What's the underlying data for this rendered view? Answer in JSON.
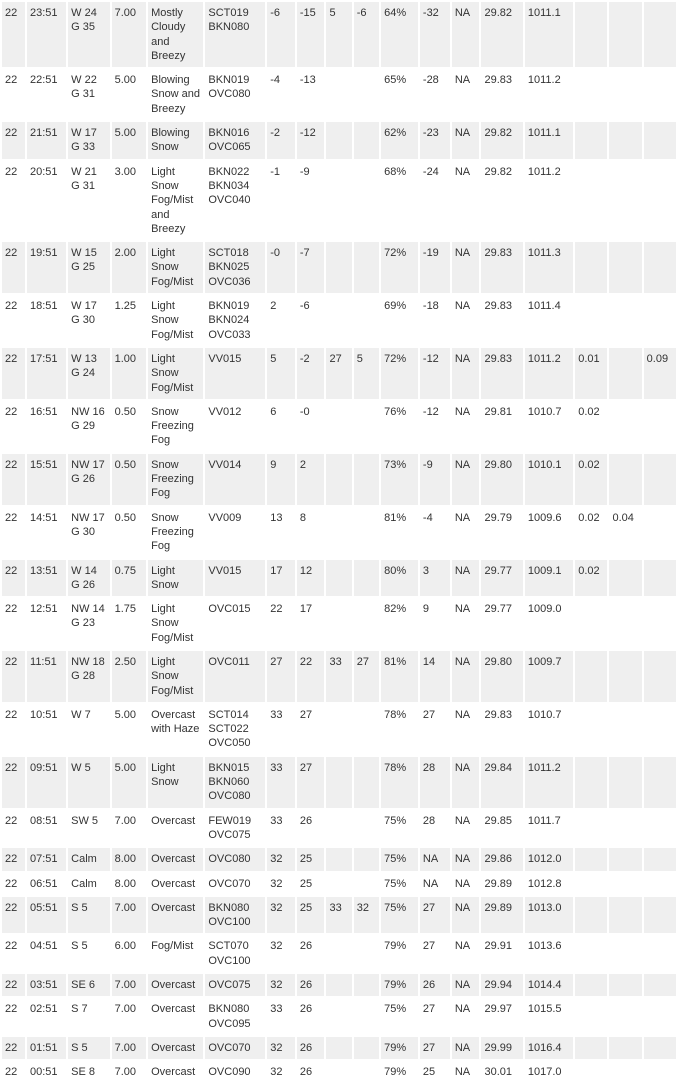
{
  "columns": 18,
  "rows": [
    {
      "shade": "even",
      "cells": [
        "22",
        "23:51",
        "W 24 G 35",
        "7.00",
        "Mostly Cloudy and Breezy",
        "SCT019 BKN080",
        "-6",
        "-15",
        "5",
        "-6",
        "64%",
        "-32",
        "NA",
        "29.82",
        "1011.1",
        "",
        "",
        ""
      ]
    },
    {
      "shade": "odd",
      "cells": [
        "22",
        "22:51",
        "W 22 G 31",
        "5.00",
        "Blowing Snow and Breezy",
        "BKN019 OVC080",
        "-4",
        "-13",
        "",
        "",
        "65%",
        "-28",
        "NA",
        "29.83",
        "1011.2",
        "",
        "",
        ""
      ]
    },
    {
      "shade": "even",
      "cells": [
        "22",
        "21:51",
        "W 17 G 33",
        "5.00",
        "Blowing Snow",
        "BKN016 OVC065",
        "-2",
        "-12",
        "",
        "",
        "62%",
        "-23",
        "NA",
        "29.82",
        "1011.1",
        "",
        "",
        ""
      ]
    },
    {
      "shade": "odd",
      "cells": [
        "22",
        "20:51",
        "W 21 G 31",
        "3.00",
        "Light Snow Fog/Mist and Breezy",
        "BKN022 BKN034 OVC040",
        "-1",
        "-9",
        "",
        "",
        "68%",
        "-24",
        "NA",
        "29.82",
        "1011.2",
        "",
        "",
        ""
      ]
    },
    {
      "shade": "even",
      "cells": [
        "22",
        "19:51",
        "W 15 G 25",
        "2.00",
        "Light Snow Fog/Mist",
        "SCT018 BKN025 OVC036",
        "-0",
        "-7",
        "",
        "",
        "72%",
        "-19",
        "NA",
        "29.83",
        "1011.3",
        "",
        "",
        ""
      ]
    },
    {
      "shade": "odd",
      "cells": [
        "22",
        "18:51",
        "W 17 G 30",
        "1.25",
        "Light Snow Fog/Mist",
        "BKN019 BKN024 OVC033",
        "2",
        "-6",
        "",
        "",
        "69%",
        "-18",
        "NA",
        "29.83",
        "1011.4",
        "",
        "",
        ""
      ]
    },
    {
      "shade": "even",
      "cells": [
        "22",
        "17:51",
        "W 13 G 24",
        "1.00",
        "Light Snow Fog/Mist",
        "VV015",
        "5",
        "-2",
        "27",
        "5",
        "72%",
        "-12",
        "NA",
        "29.83",
        "1011.2",
        "0.01",
        "",
        "0.09"
      ]
    },
    {
      "shade": "odd",
      "cells": [
        "22",
        "16:51",
        "NW 16 G 29",
        "0.50",
        "Snow Freezing Fog",
        "VV012",
        "6",
        "-0",
        "",
        "",
        "76%",
        "-12",
        "NA",
        "29.81",
        "1010.7",
        "0.02",
        "",
        ""
      ]
    },
    {
      "shade": "even",
      "cells": [
        "22",
        "15:51",
        "NW 17 G 26",
        "0.50",
        "Snow Freezing Fog",
        "VV014",
        "9",
        "2",
        "",
        "",
        "73%",
        "-9",
        "NA",
        "29.80",
        "1010.1",
        "0.02",
        "",
        ""
      ]
    },
    {
      "shade": "odd",
      "cells": [
        "22",
        "14:51",
        "NW 17 G 30",
        "0.50",
        "Snow Freezing Fog",
        "VV009",
        "13",
        "8",
        "",
        "",
        "81%",
        "-4",
        "NA",
        "29.79",
        "1009.6",
        "0.02",
        "0.04",
        ""
      ]
    },
    {
      "shade": "even",
      "cells": [
        "22",
        "13:51",
        "W 14 G 26",
        "0.75",
        "Light Snow",
        "VV015",
        "17",
        "12",
        "",
        "",
        "80%",
        "3",
        "NA",
        "29.77",
        "1009.1",
        "0.02",
        "",
        ""
      ]
    },
    {
      "shade": "odd",
      "cells": [
        "22",
        "12:51",
        "NW 14 G 23",
        "1.75",
        "Light Snow Fog/Mist",
        "OVC015",
        "22",
        "17",
        "",
        "",
        "82%",
        "9",
        "NA",
        "29.77",
        "1009.0",
        "",
        "",
        ""
      ]
    },
    {
      "shade": "even",
      "cells": [
        "22",
        "11:51",
        "NW 18 G 28",
        "2.50",
        "Light Snow Fog/Mist",
        "OVC011",
        "27",
        "22",
        "33",
        "27",
        "81%",
        "14",
        "NA",
        "29.80",
        "1009.7",
        "",
        "",
        ""
      ]
    },
    {
      "shade": "odd",
      "cells": [
        "22",
        "10:51",
        "W 7",
        "5.00",
        "Overcast with Haze",
        "SCT014 SCT022 OVC050",
        "33",
        "27",
        "",
        "",
        "78%",
        "27",
        "NA",
        "29.83",
        "1010.7",
        "",
        "",
        ""
      ]
    },
    {
      "shade": "even",
      "cells": [
        "22",
        "09:51",
        "W 5",
        "5.00",
        "Light Snow",
        "BKN015 BKN060 OVC080",
        "33",
        "27",
        "",
        "",
        "78%",
        "28",
        "NA",
        "29.84",
        "1011.2",
        "",
        "",
        ""
      ]
    },
    {
      "shade": "odd",
      "cells": [
        "22",
        "08:51",
        "SW 5",
        "7.00",
        "Overcast",
        "FEW019 OVC075",
        "33",
        "26",
        "",
        "",
        "75%",
        "28",
        "NA",
        "29.85",
        "1011.7",
        "",
        "",
        ""
      ]
    },
    {
      "shade": "even",
      "cells": [
        "22",
        "07:51",
        "Calm",
        "8.00",
        "Overcast",
        "OVC080",
        "32",
        "25",
        "",
        "",
        "75%",
        "NA",
        "NA",
        "29.86",
        "1012.0",
        "",
        "",
        ""
      ]
    },
    {
      "shade": "odd",
      "cells": [
        "22",
        "06:51",
        "Calm",
        "8.00",
        "Overcast",
        "OVC070",
        "32",
        "25",
        "",
        "",
        "75%",
        "NA",
        "NA",
        "29.89",
        "1012.8",
        "",
        "",
        ""
      ]
    },
    {
      "shade": "even",
      "cells": [
        "22",
        "05:51",
        "S 5",
        "7.00",
        "Overcast",
        "BKN080 OVC100",
        "32",
        "25",
        "33",
        "32",
        "75%",
        "27",
        "NA",
        "29.89",
        "1013.0",
        "",
        "",
        ""
      ]
    },
    {
      "shade": "odd",
      "cells": [
        "22",
        "04:51",
        "S 5",
        "6.00",
        "Fog/Mist",
        "SCT070 OVC100",
        "32",
        "26",
        "",
        "",
        "79%",
        "27",
        "NA",
        "29.91",
        "1013.6",
        "",
        "",
        ""
      ]
    },
    {
      "shade": "even",
      "cells": [
        "22",
        "03:51",
        "SE 6",
        "7.00",
        "Overcast",
        "OVC075",
        "32",
        "26",
        "",
        "",
        "79%",
        "26",
        "NA",
        "29.94",
        "1014.4",
        "",
        "",
        ""
      ]
    },
    {
      "shade": "odd",
      "cells": [
        "22",
        "02:51",
        "S 7",
        "7.00",
        "Overcast",
        "BKN080 OVC095",
        "33",
        "26",
        "",
        "",
        "75%",
        "27",
        "NA",
        "29.97",
        "1015.5",
        "",
        "",
        ""
      ]
    },
    {
      "shade": "even",
      "cells": [
        "22",
        "01:51",
        "S 5",
        "7.00",
        "Overcast",
        "OVC070",
        "32",
        "26",
        "",
        "",
        "79%",
        "27",
        "NA",
        "29.99",
        "1016.4",
        "",
        "",
        ""
      ]
    },
    {
      "shade": "odd",
      "cells": [
        "22",
        "00:51",
        "SE 8",
        "7.00",
        "Overcast",
        "OVC090",
        "32",
        "26",
        "",
        "",
        "79%",
        "25",
        "NA",
        "30.01",
        "1017.0",
        "",
        "",
        ""
      ]
    }
  ]
}
